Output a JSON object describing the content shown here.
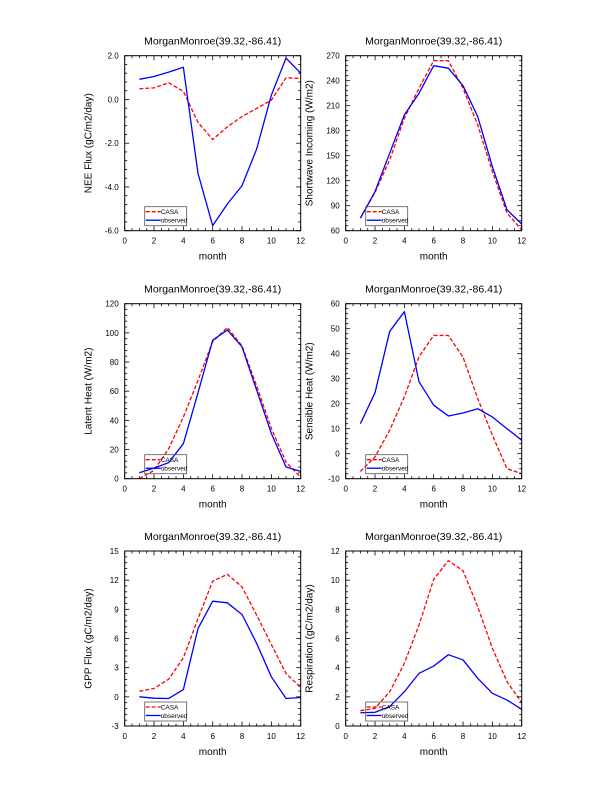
{
  "figure": {
    "panel_title": "MorganMonroe(39.32,-86.41)"
  },
  "chart_data": [
    {
      "type": "line",
      "title": "MorganMonroe(39.32,-86.41)",
      "xlabel": "month",
      "ylabel": "NEE Flux (gC/m2/day)",
      "xlim": [
        0,
        12
      ],
      "ylim": [
        -6.0,
        2.0
      ],
      "xticks": [
        "0",
        "2",
        "4",
        "6",
        "8",
        "10",
        "12"
      ],
      "yticks": [
        "-6.0",
        "-4.0",
        "-2.0",
        "0.0",
        "2.0"
      ],
      "ytick_values": [
        -6,
        -4,
        -2,
        0,
        2
      ],
      "x": [
        1,
        2,
        3,
        4,
        5,
        6,
        7,
        8,
        9,
        10,
        11,
        12
      ],
      "series": [
        {
          "name": "CASA",
          "color": "#ff0000",
          "dash": true,
          "values": [
            0.49,
            0.53,
            0.76,
            0.37,
            -1.05,
            -1.83,
            -1.25,
            -0.78,
            -0.41,
            -0.03,
            0.99,
            0.96
          ]
        },
        {
          "name": "observed",
          "color": "#0000ff",
          "dash": false,
          "values": [
            0.92,
            1.05,
            1.25,
            1.47,
            -3.39,
            -5.77,
            -4.78,
            -3.94,
            -2.26,
            0.2,
            1.89,
            1.2
          ]
        }
      ],
      "legend": "bottom-left",
      "grid": false
    },
    {
      "type": "line",
      "title": "MorganMonroe(39.32,-86.41)",
      "xlabel": "month",
      "ylabel": "Shortwave Incoming (W/m2)",
      "xlim": [
        0,
        12
      ],
      "ylim": [
        60,
        270
      ],
      "xticks": [
        "0",
        "2",
        "4",
        "6",
        "8",
        "10",
        "12"
      ],
      "yticks": [
        "60",
        "90",
        "120",
        "150",
        "180",
        "210",
        "240",
        "270"
      ],
      "ytick_values": [
        60,
        90,
        120,
        150,
        180,
        210,
        240,
        270
      ],
      "x": [
        1,
        2,
        3,
        4,
        5,
        6,
        7,
        8,
        9,
        10,
        11,
        12
      ],
      "series": [
        {
          "name": "CASA",
          "color": "#ff0000",
          "dash": true,
          "values": [
            75,
            106,
            145,
            195,
            231,
            264,
            264,
            231,
            187,
            131,
            81,
            61
          ]
        },
        {
          "name": "observed",
          "color": "#0000ff",
          "dash": false,
          "values": [
            75,
            107,
            153,
            199,
            225,
            258,
            255,
            234,
            197,
            137,
            85,
            68
          ]
        }
      ],
      "legend": "bottom-left",
      "grid": false
    },
    {
      "type": "line",
      "title": "MorganMonroe(39.32,-86.41)",
      "xlabel": "month",
      "ylabel": "Latent Heat (W/m2)",
      "xlim": [
        0,
        12
      ],
      "ylim": [
        0,
        120
      ],
      "xticks": [
        "0",
        "2",
        "4",
        "6",
        "8",
        "10",
        "12"
      ],
      "yticks": [
        "0",
        "20",
        "40",
        "60",
        "80",
        "100",
        "120"
      ],
      "ytick_values": [
        0,
        20,
        40,
        60,
        80,
        100,
        120
      ],
      "x": [
        1,
        2,
        3,
        4,
        5,
        6,
        7,
        8,
        9,
        10,
        11,
        12
      ],
      "series": [
        {
          "name": "CASA",
          "color": "#ff0000",
          "dash": true,
          "values": [
            0,
            5.7,
            20.6,
            42.3,
            67.5,
            94,
            103.7,
            91,
            63.5,
            34.5,
            11.4,
            1
          ]
        },
        {
          "name": "observed",
          "color": "#0000ff",
          "dash": false,
          "values": [
            4.1,
            7.3,
            11,
            24,
            59,
            95,
            102,
            90.4,
            60.6,
            31,
            8,
            5
          ]
        }
      ],
      "legend": "bottom-left",
      "grid": false
    },
    {
      "type": "line",
      "title": "MorganMonroe(39.32,-86.41)",
      "xlabel": "month",
      "ylabel": "Sensible Heat (W/m2)",
      "xlim": [
        0,
        12
      ],
      "ylim": [
        -10,
        60
      ],
      "xticks": [
        "0",
        "2",
        "4",
        "6",
        "8",
        "10",
        "12"
      ],
      "yticks": [
        "-10",
        "0",
        "10",
        "20",
        "30",
        "40",
        "50",
        "60"
      ],
      "ytick_values": [
        -10,
        0,
        10,
        20,
        30,
        40,
        50,
        60
      ],
      "x": [
        1,
        2,
        3,
        4,
        5,
        6,
        7,
        8,
        9,
        10,
        11,
        12
      ],
      "series": [
        {
          "name": "CASA",
          "color": "#ff0000",
          "dash": true,
          "values": [
            -7.1,
            -1.3,
            9.4,
            22.8,
            38.8,
            47.3,
            47.3,
            38.6,
            22.1,
            7.4,
            -6,
            -8
          ]
        },
        {
          "name": "observed",
          "color": "#0000ff",
          "dash": false,
          "values": [
            12,
            24.4,
            48.9,
            56.8,
            28.8,
            19.4,
            15.1,
            16.3,
            18,
            14.7,
            10,
            5.4
          ]
        }
      ],
      "legend": "bottom-left",
      "grid": false
    },
    {
      "type": "line",
      "title": "MorganMonroe(39.32,-86.41)",
      "xlabel": "month",
      "ylabel": "GPP Flux (gC/m2/day)",
      "xlim": [
        0,
        12
      ],
      "ylim": [
        -3,
        15
      ],
      "xticks": [
        "0",
        "2",
        "4",
        "6",
        "8",
        "10",
        "12"
      ],
      "yticks": [
        "-3",
        "0",
        "3",
        "6",
        "9",
        "12",
        "15"
      ],
      "ytick_values": [
        -3,
        0,
        3,
        6,
        9,
        12,
        15
      ],
      "x": [
        1,
        2,
        3,
        4,
        5,
        6,
        7,
        8,
        9,
        10,
        11,
        12
      ],
      "series": [
        {
          "name": "CASA",
          "color": "#ff0000",
          "dash": true,
          "values": [
            0.58,
            0.86,
            1.82,
            4.01,
            8.06,
            11.9,
            12.6,
            11.3,
            8.4,
            5.38,
            2.4,
            0.96
          ]
        },
        {
          "name": "observed",
          "color": "#0000ff",
          "dash": false,
          "values": [
            0,
            -0.14,
            -0.17,
            0.75,
            7.03,
            9.84,
            9.67,
            8.47,
            5.49,
            2.06,
            -0.17,
            -0.07
          ]
        }
      ],
      "legend": "bottom-left",
      "grid": false
    },
    {
      "type": "line",
      "title": "MorganMonroe(39.32,-86.41)",
      "xlabel": "month",
      "ylabel": "Respiration (gC/m2/day)",
      "xlim": [
        0,
        12
      ],
      "ylim": [
        0,
        12
      ],
      "xticks": [
        "0",
        "2",
        "4",
        "6",
        "8",
        "10",
        "12"
      ],
      "yticks": [
        "0",
        "2",
        "4",
        "6",
        "8",
        "10",
        "12"
      ],
      "ytick_values": [
        0,
        2,
        4,
        6,
        8,
        10,
        12
      ],
      "x": [
        1,
        2,
        3,
        4,
        5,
        6,
        7,
        8,
        9,
        10,
        11,
        12
      ],
      "series": [
        {
          "name": "CASA",
          "color": "#ff0000",
          "dash": true,
          "values": [
            1.05,
            1.21,
            2.35,
            4.3,
            6.93,
            10.06,
            11.34,
            10.65,
            8.18,
            5.33,
            3.04,
            1.6
          ]
        },
        {
          "name": "observed",
          "color": "#0000ff",
          "dash": false,
          "values": [
            0.91,
            0.94,
            1.33,
            2.35,
            3.61,
            4.11,
            4.89,
            4.53,
            3.27,
            2.24,
            1.78,
            1.14
          ]
        }
      ],
      "legend": "bottom-left",
      "grid": false
    }
  ]
}
